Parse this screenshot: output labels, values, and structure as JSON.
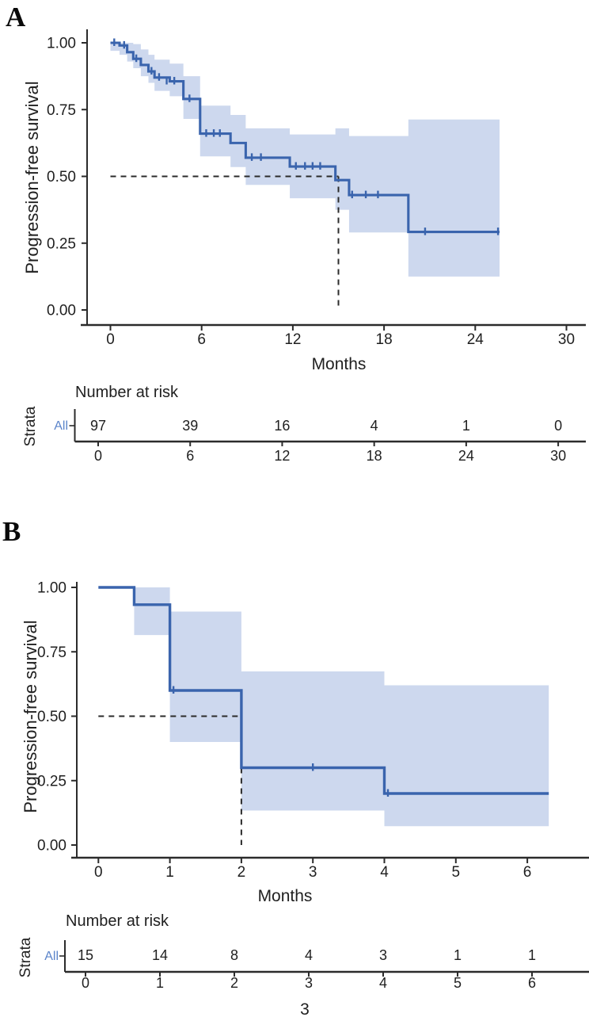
{
  "figure_type": "kaplan_meier_survival_figure",
  "colors": {
    "curve": "#3a64ad",
    "ci_band": "#cdd8ee",
    "strata_label": "#5b84ca",
    "text": "#1f1f1f",
    "axis": "#2b2b2b",
    "dashed": "#2b2b2b",
    "background": "#ffffff"
  },
  "chart_data": [
    {
      "type": "km_step",
      "panel_label": "A",
      "ylabel": "Progression-free survival",
      "xlabel": "Months",
      "xlim": [
        0,
        30
      ],
      "ylim": [
        0,
        1
      ],
      "x_ticks": [
        "0",
        "6",
        "12",
        "18",
        "24",
        "30"
      ],
      "x_tick_values": [
        0,
        6,
        12,
        18,
        24,
        30
      ],
      "y_ticks": [
        {
          "v": 1.0,
          "label": "1.00"
        },
        {
          "v": 0.75,
          "label": "0.75"
        },
        {
          "v": 0.5,
          "label": "0.50"
        },
        {
          "v": 0.25,
          "label": "0.25"
        },
        {
          "v": 0.0,
          "label": "0.00"
        }
      ],
      "median": {
        "time": 15,
        "survival": 0.5
      },
      "curve_end_time": 25.6,
      "steps": [
        [
          0,
          1.0
        ],
        [
          0.6,
          0.99
        ],
        [
          1.1,
          0.965
        ],
        [
          1.5,
          0.94
        ],
        [
          2.0,
          0.917
        ],
        [
          2.5,
          0.893
        ],
        [
          2.9,
          0.87
        ],
        [
          3.9,
          0.856
        ],
        [
          4.8,
          0.79
        ],
        [
          5.9,
          0.66
        ],
        [
          7.9,
          0.625
        ],
        [
          8.9,
          0.57
        ],
        [
          11.8,
          0.537
        ],
        [
          14.8,
          0.486
        ],
        [
          15.7,
          0.43
        ],
        [
          19.6,
          0.292
        ]
      ],
      "censor_marks": [
        [
          0.25,
          1.0
        ],
        [
          0.9,
          0.99
        ],
        [
          1.7,
          0.94
        ],
        [
          2.7,
          0.893
        ],
        [
          3.2,
          0.87
        ],
        [
          3.7,
          0.856
        ],
        [
          4.2,
          0.856
        ],
        [
          5.2,
          0.79
        ],
        [
          6.3,
          0.66
        ],
        [
          6.8,
          0.66
        ],
        [
          7.2,
          0.66
        ],
        [
          9.3,
          0.57
        ],
        [
          9.9,
          0.57
        ],
        [
          12.2,
          0.537
        ],
        [
          12.8,
          0.537
        ],
        [
          13.3,
          0.537
        ],
        [
          13.8,
          0.537
        ],
        [
          15.9,
          0.43
        ],
        [
          16.8,
          0.43
        ],
        [
          17.6,
          0.43
        ],
        [
          20.7,
          0.292
        ],
        [
          25.5,
          0.292
        ]
      ],
      "ci_band": [
        [
          0,
          0.6,
          0.97,
          1.0
        ],
        [
          0.6,
          1.1,
          0.955,
          1.0
        ],
        [
          1.1,
          1.5,
          0.93,
          1.0
        ],
        [
          1.5,
          2.0,
          0.905,
          0.995
        ],
        [
          2.0,
          2.5,
          0.875,
          0.975
        ],
        [
          2.5,
          2.9,
          0.85,
          0.955
        ],
        [
          2.9,
          3.9,
          0.82,
          0.937
        ],
        [
          3.9,
          4.8,
          0.8,
          0.922
        ],
        [
          4.8,
          5.9,
          0.715,
          0.875
        ],
        [
          5.9,
          7.9,
          0.575,
          0.765
        ],
        [
          7.9,
          8.9,
          0.535,
          0.73
        ],
        [
          8.9,
          11.8,
          0.468,
          0.68
        ],
        [
          11.8,
          14.8,
          0.418,
          0.657
        ],
        [
          14.8,
          15.7,
          0.375,
          0.68
        ],
        [
          15.7,
          19.6,
          0.29,
          0.651
        ],
        [
          19.6,
          25.6,
          0.125,
          0.713
        ]
      ],
      "risk_table": {
        "title": "Number at risk",
        "axis_label": "Strata",
        "strata": [
          {
            "name": "All",
            "counts": [
              "97",
              "39",
              "16",
              "4",
              "1",
              "0"
            ]
          }
        ],
        "times": [
          "0",
          "6",
          "12",
          "18",
          "24",
          "30"
        ],
        "time_values": [
          0,
          6,
          12,
          18,
          24,
          30
        ]
      }
    },
    {
      "type": "km_step",
      "panel_label": "B",
      "ylabel": "Progression-free survival",
      "xlabel": "Months",
      "xlim": [
        0,
        6.35
      ],
      "ylim": [
        0,
        1
      ],
      "x_ticks": [
        "0",
        "1",
        "2",
        "3",
        "4",
        "5",
        "6"
      ],
      "x_tick_values": [
        0,
        1,
        2,
        3,
        4,
        5,
        6
      ],
      "y_ticks": [
        {
          "v": 1.0,
          "label": "1.00"
        },
        {
          "v": 0.75,
          "label": "0.75"
        },
        {
          "v": 0.5,
          "label": "0.50"
        },
        {
          "v": 0.25,
          "label": "0.25"
        },
        {
          "v": 0.0,
          "label": "0.00"
        }
      ],
      "median": {
        "time": 2,
        "survival": 0.5
      },
      "curve_end_time": 6.3,
      "steps": [
        [
          0,
          1.0
        ],
        [
          0.5,
          0.933
        ],
        [
          1.0,
          0.6
        ],
        [
          2.0,
          0.3
        ],
        [
          4.0,
          0.2
        ]
      ],
      "censor_marks": [
        [
          1.05,
          0.6
        ],
        [
          3.0,
          0.3
        ],
        [
          4.05,
          0.2
        ]
      ],
      "ci_band": [
        [
          0.5,
          1.0,
          0.815,
          1.0
        ],
        [
          1.0,
          2.0,
          0.4,
          0.906
        ],
        [
          2.0,
          4.0,
          0.134,
          0.674
        ],
        [
          4.0,
          6.3,
          0.073,
          0.62
        ]
      ],
      "risk_table": {
        "title": "Number at risk",
        "axis_label": "Strata",
        "strata": [
          {
            "name": "All",
            "counts": [
              "15",
              "14",
              "8",
              "4",
              "3",
              "1",
              "1"
            ]
          }
        ],
        "times": [
          "0",
          "1",
          "2",
          "3",
          "4",
          "5",
          "6"
        ],
        "time_values": [
          0,
          1,
          2,
          3,
          4,
          5,
          6
        ]
      },
      "footer_text": "3"
    }
  ]
}
